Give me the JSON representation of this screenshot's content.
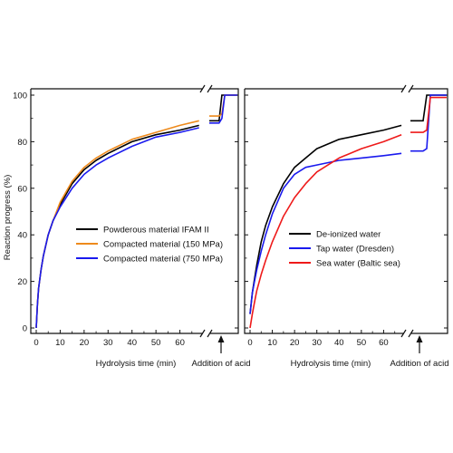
{
  "figure": {
    "ylabel": "Reaction progress (%)",
    "acid_label": "Addition of acid"
  },
  "chart_data": [
    {
      "type": "line",
      "title": "",
      "xlabel": "Hydrolysis time (min)",
      "ylabel": "Reaction progress (%)",
      "xlim": [
        0,
        70
      ],
      "ylim": [
        0,
        100
      ],
      "xticks": [
        "0",
        "10",
        "20",
        "30",
        "40",
        "50",
        "60"
      ],
      "yticks": [
        "0",
        "20",
        "40",
        "60",
        "80",
        "100"
      ],
      "grid": false,
      "legend_position": "center-left",
      "series": [
        {
          "name": "Powderous material IFAM II",
          "color": "#000000",
          "x": [
            0,
            0.5,
            1,
            2,
            3,
            5,
            7,
            10,
            15,
            20,
            25,
            30,
            40,
            50,
            60,
            68
          ],
          "y": [
            0,
            10,
            17,
            25,
            31,
            40,
            46,
            53,
            62,
            68,
            72,
            75,
            80,
            83,
            85,
            87
          ],
          "after_acid": [
            89,
            89,
            100,
            100,
            100
          ]
        },
        {
          "name": "Compacted material (150 MPa)",
          "color": "#ee8a1c",
          "x": [
            0,
            0.5,
            1,
            2,
            3,
            5,
            7,
            10,
            15,
            20,
            25,
            30,
            40,
            50,
            60,
            68
          ],
          "y": [
            0,
            10,
            17,
            25,
            31,
            40,
            46,
            54,
            63,
            69,
            73,
            76,
            81,
            84,
            87,
            89
          ],
          "after_acid": [
            91,
            91,
            92,
            100,
            100
          ]
        },
        {
          "name": "Compacted material (750 MPa)",
          "color": "#1a1aee",
          "x": [
            0,
            0.5,
            1,
            2,
            3,
            5,
            7,
            10,
            15,
            20,
            25,
            30,
            40,
            50,
            60,
            68
          ],
          "y": [
            0,
            10,
            17,
            25,
            31,
            40,
            46,
            52,
            60,
            66,
            70,
            73,
            78,
            82,
            84,
            86
          ],
          "after_acid": [
            88,
            88,
            90,
            100,
            100
          ]
        }
      ]
    },
    {
      "type": "line",
      "title": "",
      "xlabel": "Hydrolysis time (min)",
      "ylabel": "",
      "xlim": [
        0,
        70
      ],
      "ylim": [
        0,
        100
      ],
      "xticks": [
        "0",
        "10",
        "20",
        "30",
        "40",
        "50",
        "60"
      ],
      "yticks": [
        "0",
        "20",
        "40",
        "60",
        "80",
        "100"
      ],
      "grid": false,
      "legend_position": "center-right",
      "series": [
        {
          "name": "De-ionized water",
          "color": "#000000",
          "x": [
            0,
            1,
            2,
            3,
            5,
            7,
            10,
            15,
            20,
            25,
            30,
            40,
            50,
            60,
            68
          ],
          "y": [
            6,
            15,
            21,
            27,
            37,
            44,
            52,
            62,
            69,
            73,
            77,
            81,
            83,
            85,
            87
          ],
          "after_acid": [
            89,
            89,
            100,
            100,
            100
          ]
        },
        {
          "name": "Tap water (Dresden)",
          "color": "#1a1aee",
          "x": [
            0,
            1,
            2,
            3,
            5,
            7,
            10,
            15,
            20,
            25,
            30,
            40,
            50,
            60,
            68
          ],
          "y": [
            6,
            15,
            20,
            25,
            33,
            40,
            49,
            60,
            66,
            69,
            70,
            72,
            73,
            74,
            75
          ],
          "after_acid": [
            76,
            76,
            77,
            100,
            100
          ]
        },
        {
          "name": "Sea water (Baltic sea)",
          "color": "#ee1a1a",
          "x": [
            0,
            1,
            2,
            3,
            5,
            7,
            10,
            15,
            20,
            25,
            30,
            35,
            40,
            50,
            60,
            68
          ],
          "y": [
            0,
            6,
            11,
            16,
            23,
            29,
            37,
            48,
            56,
            62,
            67,
            70,
            73,
            77,
            80,
            83
          ],
          "after_acid": [
            84,
            84,
            85,
            99,
            99
          ]
        }
      ]
    }
  ]
}
